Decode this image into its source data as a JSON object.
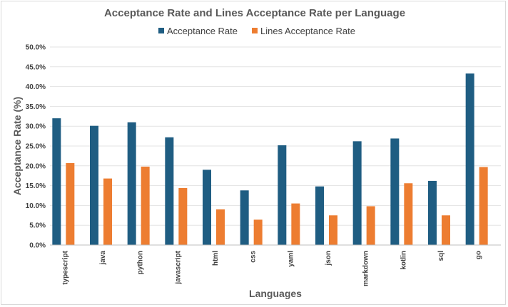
{
  "chart_data": {
    "type": "bar",
    "title": "Acceptance Rate and Lines Acceptance Rate per Language",
    "xlabel": "Languages",
    "ylabel": "Acceptance Rate (%)",
    "ylim": [
      0,
      50
    ],
    "yticks": [
      "0.0%",
      "5.0%",
      "10.0%",
      "15.0%",
      "20.0%",
      "25.0%",
      "30.0%",
      "35.0%",
      "40.0%",
      "45.0%",
      "50.0%"
    ],
    "grid": true,
    "legend_position": "top",
    "categories": [
      "typescript",
      "java",
      "python",
      "javascript",
      "html",
      "css",
      "yaml",
      "json",
      "markdown",
      "kotlin",
      "sql",
      "go"
    ],
    "series": [
      {
        "name": "Acceptance Rate",
        "color": "#1f5d82",
        "values": [
          32.0,
          30.1,
          31.0,
          27.2,
          19.0,
          13.8,
          25.2,
          14.8,
          26.2,
          26.9,
          16.2,
          43.3
        ]
      },
      {
        "name": "Lines Acceptance Rate",
        "color": "#ed7d31",
        "values": [
          20.7,
          16.8,
          19.8,
          14.4,
          9.0,
          6.4,
          10.5,
          7.5,
          9.8,
          15.6,
          7.5,
          19.7
        ]
      }
    ]
  }
}
